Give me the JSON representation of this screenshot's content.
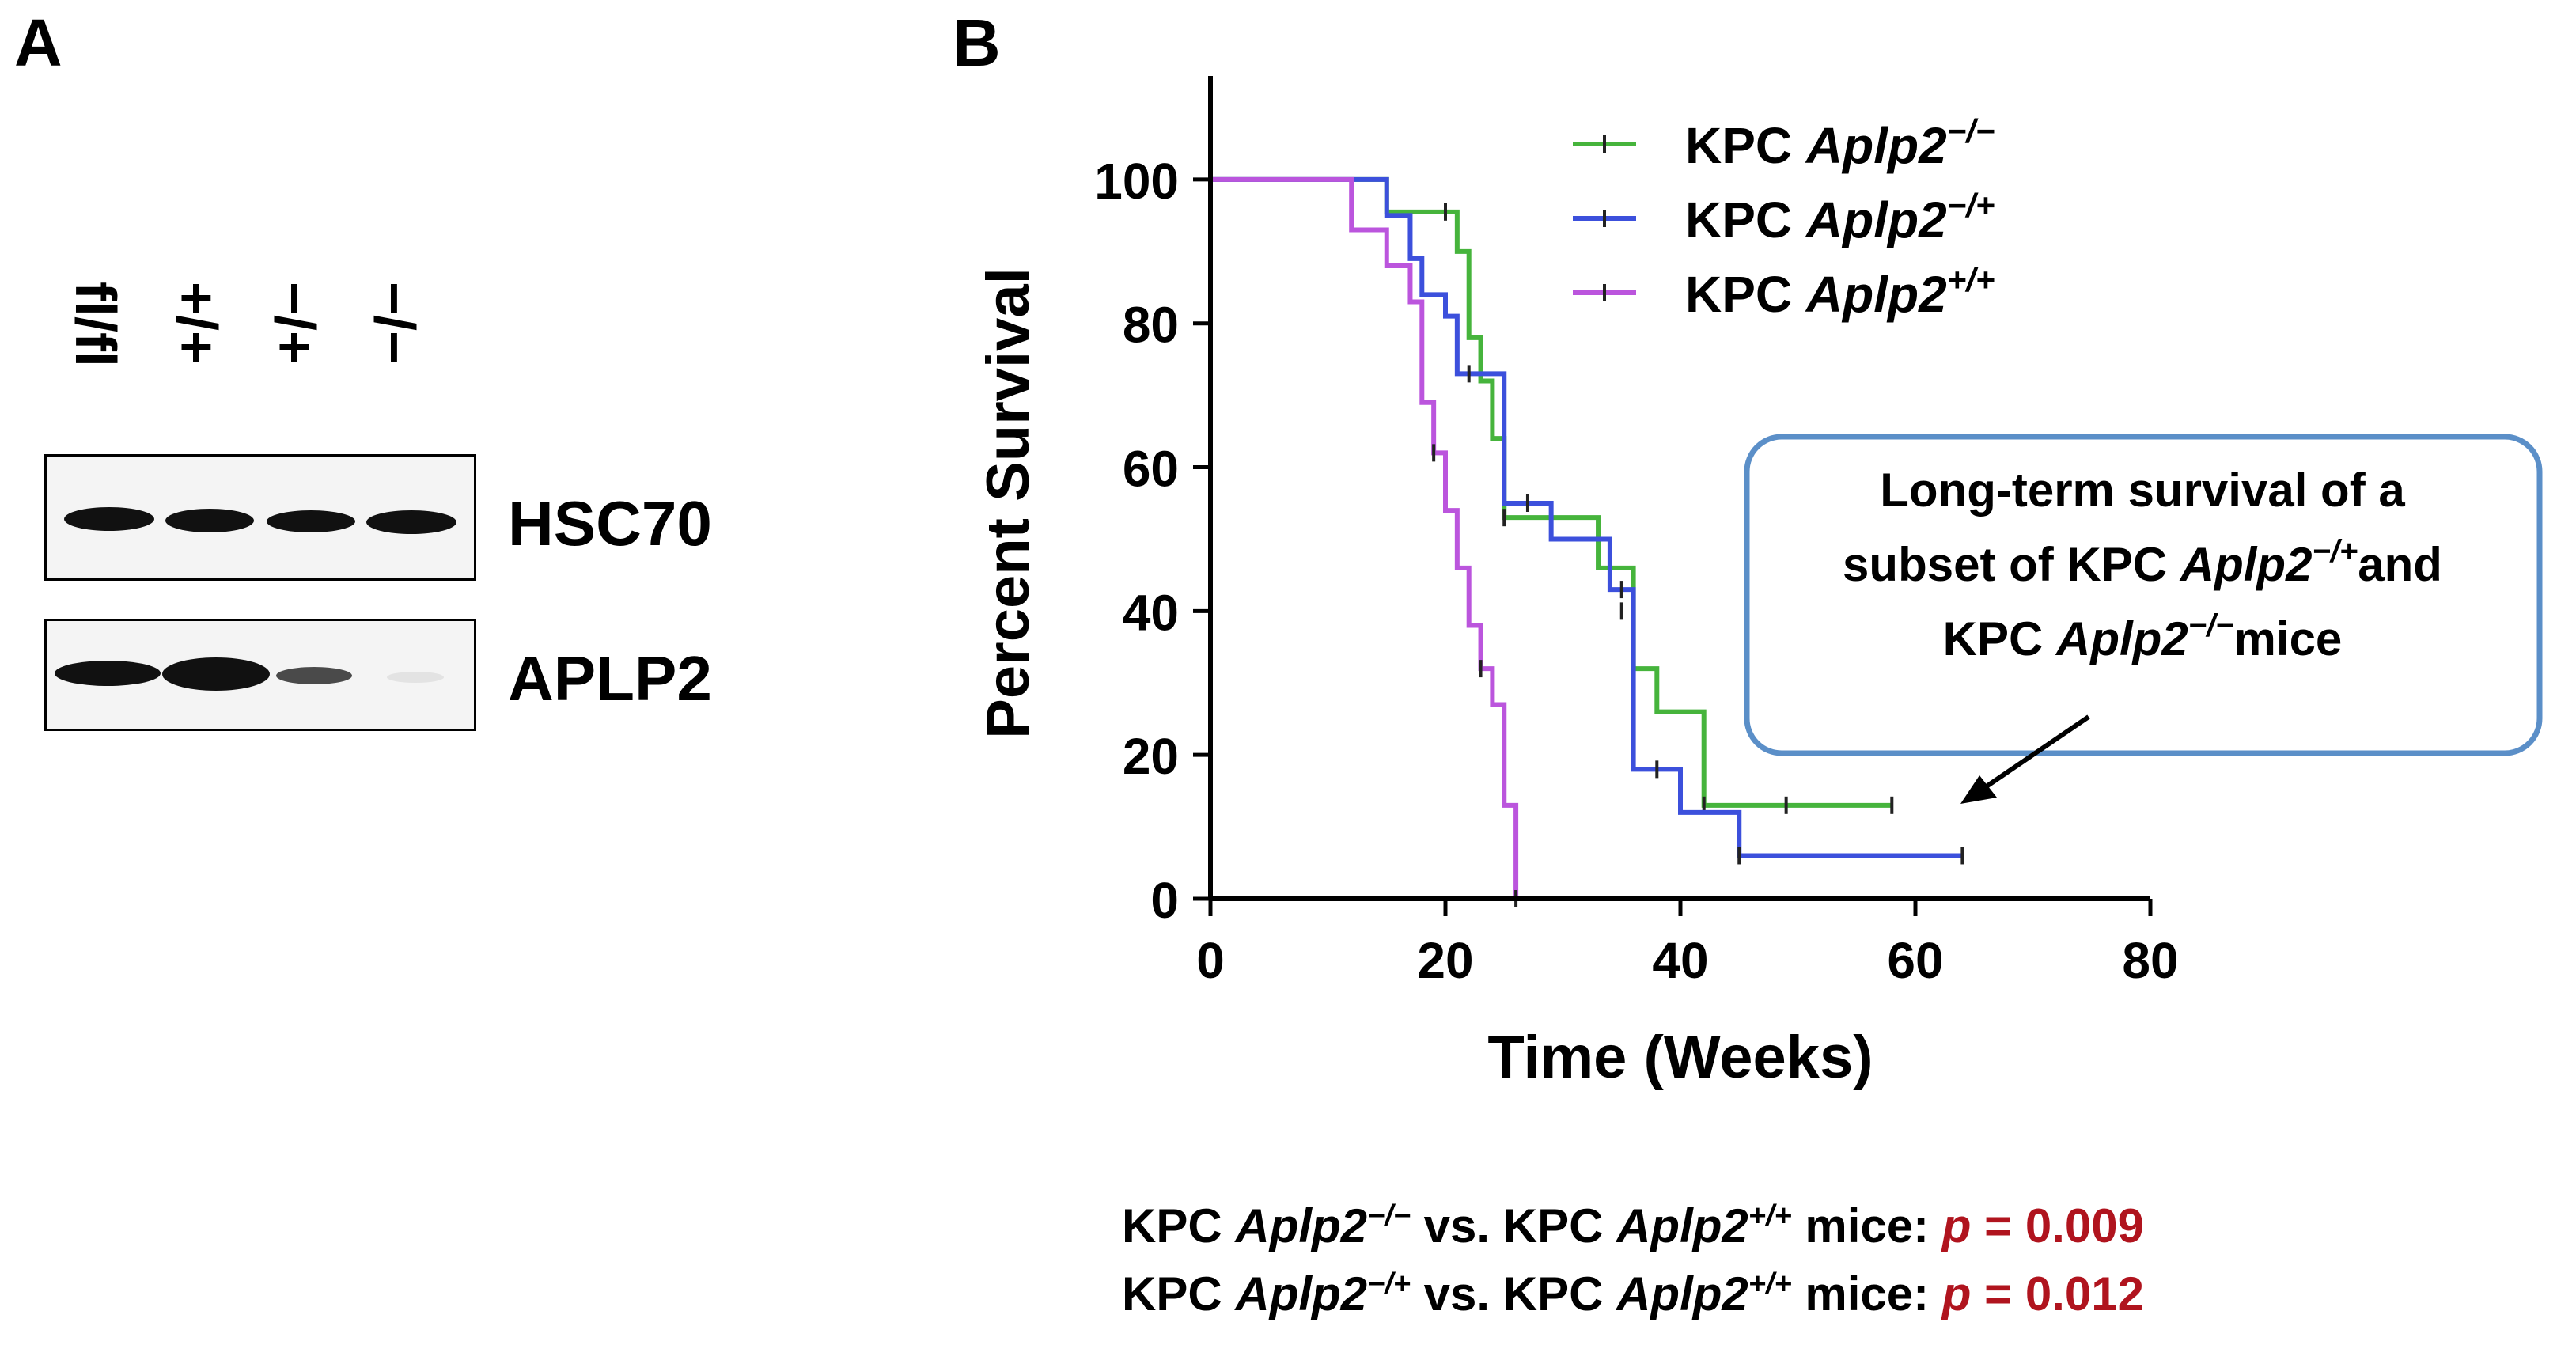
{
  "panel_a": {
    "letter": "A",
    "lanes": [
      "fl/fl",
      "+/+",
      "−/+",
      "−/−"
    ],
    "blots": [
      {
        "label": "HSC70",
        "band_intensity": [
          1.0,
          1.0,
          1.0,
          1.0
        ]
      },
      {
        "label": "APLP2",
        "band_intensity": [
          1.0,
          1.0,
          0.45,
          0.06
        ]
      }
    ]
  },
  "panel_b": {
    "letter": "B",
    "callout": {
      "line1": "Long-term survival of a",
      "line2_pre": "subset of KPC ",
      "line2_gene": "Aplp2",
      "line2_sup": "−/+",
      "line2_post": "and",
      "line3_pre": "KPC ",
      "line3_gene": "Aplp2",
      "line3_sup": "−/−",
      "line3_post": "mice"
    },
    "stats": [
      {
        "pre": "KPC ",
        "gene_a": "Aplp2",
        "sup_a": "−/−",
        "mid": " vs. KPC ",
        "gene_b": "Aplp2",
        "sup_b": "+/+",
        "post": "  mice: ",
        "p_label": "p",
        "p_value": " = 0.009"
      },
      {
        "pre": "KPC ",
        "gene_a": "Aplp2",
        "sup_a": "−/+",
        "mid": " vs. KPC ",
        "gene_b": "Aplp2",
        "sup_b": "+/+",
        "post": "  mice: ",
        "p_label": "p",
        "p_value": " = 0.012"
      }
    ]
  },
  "chart_data": {
    "type": "line",
    "subtype": "kaplan-meier step",
    "title": "",
    "xlabel": "Time (Weeks)",
    "ylabel": "Percent Survival",
    "xlim": [
      0,
      80
    ],
    "ylim": [
      0,
      110
    ],
    "xticks": [
      0,
      20,
      40,
      60,
      80
    ],
    "yticks": [
      0,
      20,
      40,
      60,
      80,
      100
    ],
    "grid": false,
    "legend_position": "top-center",
    "series": [
      {
        "name_pre": "KPC ",
        "name_gene": "Aplp2",
        "name_sup": "−/−",
        "color": "#46b43c",
        "x": [
          0,
          15,
          21,
          22,
          23,
          24,
          25,
          33,
          36,
          38,
          42,
          58
        ],
        "y": [
          100,
          95.5,
          90,
          78,
          72,
          64,
          53,
          46,
          32,
          26,
          13,
          13
        ],
        "censored": [
          [
            20,
            95.5
          ],
          [
            25,
            53
          ],
          [
            35,
            40
          ],
          [
            42,
            13
          ],
          [
            49,
            13
          ],
          [
            58,
            13
          ]
        ]
      },
      {
        "name_pre": "KPC ",
        "name_gene": "Aplp2",
        "name_sup": "−/+",
        "color": "#3c50dc",
        "x": [
          0,
          15,
          17,
          18,
          20,
          21,
          25,
          29,
          34,
          36,
          40,
          45,
          64
        ],
        "y": [
          100,
          95,
          89,
          84,
          81,
          73,
          55,
          50,
          43,
          18,
          12,
          6,
          6
        ],
        "censored": [
          [
            22,
            73
          ],
          [
            27,
            55
          ],
          [
            35,
            43
          ],
          [
            38,
            18
          ],
          [
            45,
            6
          ],
          [
            64,
            6
          ]
        ]
      },
      {
        "name_pre": "KPC ",
        "name_gene": "Aplp2",
        "name_sup": "+/+",
        "color": "#bb55dd",
        "x": [
          0,
          12,
          15,
          17,
          18,
          19,
          20,
          21,
          22,
          23,
          24,
          25,
          26
        ],
        "y": [
          100,
          93,
          88,
          83,
          69,
          62,
          54,
          46,
          38,
          32,
          27,
          13,
          0
        ],
        "censored": [
          [
            19,
            62
          ],
          [
            23,
            32
          ],
          [
            26,
            0
          ]
        ]
      }
    ]
  }
}
